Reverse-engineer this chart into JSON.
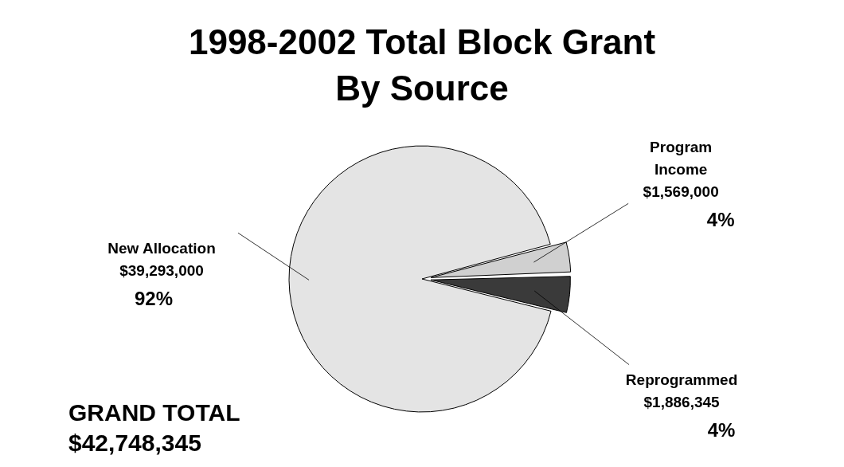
{
  "chart_data": {
    "type": "pie",
    "title": "1998-2002 Total Block Grant By Source",
    "categories": [
      "New Allocation",
      "Program Income",
      "Reprogrammed"
    ],
    "values": [
      39293000,
      1569000,
      1886345
    ],
    "value_labels": [
      "$39,293,000",
      "$1,569,000",
      "$1,886,345"
    ],
    "colors": [
      "#e4e4e4",
      "#d0d0d0",
      "#3a3a3a"
    ],
    "legend": false,
    "annotations": [
      {
        "text": "92%",
        "x": "New Allocation"
      },
      {
        "text": "4%",
        "x": "Program Income"
      },
      {
        "text": "4%",
        "x": "Reprogrammed"
      },
      "GRAND TOTAL\n$42,748,345"
    ]
  }
}
